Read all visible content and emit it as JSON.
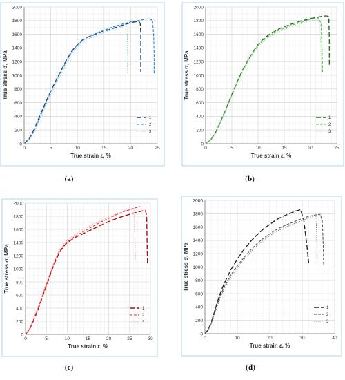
{
  "chart_data": [
    {
      "type": "line",
      "panel_label": "a",
      "xlabel": "True strain ε, %",
      "ylabel": "True stress σ, MPa",
      "xlim": [
        0,
        25
      ],
      "ylim": [
        0,
        2000
      ],
      "xticks": [
        0,
        5,
        10,
        15,
        20,
        25
      ],
      "yticks": [
        0,
        200,
        400,
        600,
        800,
        1000,
        1200,
        1400,
        1600,
        1800,
        2000
      ],
      "grid": true,
      "legend_position": "bottom-right",
      "series": [
        {
          "name": "1",
          "color": "#1f3f7a",
          "dash": "long",
          "x": [
            0,
            1,
            2,
            3,
            4,
            5,
            6,
            7,
            8,
            9,
            10,
            11,
            12,
            14,
            16,
            18,
            20,
            21.5,
            21.8,
            21.9,
            21.9,
            21.9
          ],
          "y": [
            0,
            80,
            230,
            420,
            600,
            770,
            930,
            1080,
            1230,
            1360,
            1450,
            1520,
            1560,
            1620,
            1670,
            1720,
            1770,
            1790,
            1760,
            1600,
            1300,
            1050
          ]
        },
        {
          "name": "2",
          "color": "#2e86c1",
          "dash": "short",
          "x": [
            0,
            1,
            2,
            3,
            4,
            5,
            6,
            7,
            8,
            9,
            10,
            11,
            12,
            14,
            16,
            18,
            20,
            22,
            23.5,
            24.1,
            24.3,
            24.4,
            24.4
          ],
          "y": [
            0,
            70,
            210,
            400,
            580,
            760,
            920,
            1070,
            1220,
            1350,
            1440,
            1510,
            1560,
            1630,
            1690,
            1740,
            1780,
            1810,
            1830,
            1800,
            1600,
            1300,
            1030
          ]
        },
        {
          "name": "3",
          "color": "#8cc4d6",
          "dash": "dot",
          "x": [
            0,
            1,
            2,
            3,
            4,
            5,
            6,
            7,
            8,
            9,
            10,
            11,
            12,
            14,
            16,
            18,
            19.3,
            19.4,
            19.4
          ],
          "y": [
            0,
            60,
            190,
            370,
            550,
            720,
            880,
            1030,
            1180,
            1320,
            1410,
            1480,
            1530,
            1600,
            1650,
            1700,
            1730,
            1400,
            1030
          ]
        }
      ]
    },
    {
      "type": "line",
      "panel_label": "b",
      "xlabel": "True strain ε, %",
      "ylabel": "True stress σ, MPa",
      "xlim": [
        0,
        25
      ],
      "ylim": [
        0,
        2000
      ],
      "xticks": [
        0,
        5,
        10,
        15,
        20,
        25
      ],
      "yticks": [
        0,
        200,
        400,
        600,
        800,
        1000,
        1200,
        1400,
        1600,
        1800,
        2000
      ],
      "grid": true,
      "legend_position": "bottom-right",
      "series": [
        {
          "name": "1",
          "color": "#2e6b1f",
          "dash": "long",
          "x": [
            0,
            1,
            2,
            3,
            4,
            5,
            6,
            7,
            8,
            9,
            10,
            11,
            12,
            14,
            16,
            18,
            20,
            22,
            23,
            23.5,
            23.6,
            23.6
          ],
          "y": [
            0,
            60,
            180,
            350,
            530,
            720,
            900,
            1070,
            1210,
            1340,
            1450,
            1530,
            1590,
            1680,
            1740,
            1790,
            1830,
            1860,
            1870,
            1860,
            1500,
            1130
          ]
        },
        {
          "name": "2",
          "color": "#5cb85c",
          "dash": "short",
          "x": [
            0,
            1,
            2,
            3,
            4,
            5,
            6,
            7,
            8,
            9,
            10,
            11,
            12,
            14,
            16,
            18,
            20,
            21.5,
            22,
            22.2,
            22.3
          ],
          "y": [
            0,
            55,
            170,
            340,
            520,
            710,
            890,
            1060,
            1200,
            1330,
            1440,
            1510,
            1570,
            1660,
            1720,
            1770,
            1820,
            1840,
            1760,
            1400,
            1050
          ]
        },
        {
          "name": "3",
          "color": "#b7dfb0",
          "dash": "dot",
          "x": [
            0,
            1,
            2,
            3,
            4,
            5,
            6,
            7,
            8,
            9,
            10,
            11,
            12,
            14,
            16,
            18,
            20,
            21.5,
            21.8,
            22.0,
            22.1
          ],
          "y": [
            0,
            50,
            160,
            320,
            500,
            690,
            870,
            1040,
            1180,
            1310,
            1420,
            1490,
            1550,
            1640,
            1700,
            1750,
            1800,
            1820,
            1700,
            1300,
            1020
          ]
        }
      ]
    },
    {
      "type": "line",
      "panel_label": "c",
      "xlabel": "True strain ε, %",
      "ylabel": "True stress σ, MPa",
      "xlim": [
        0,
        30
      ],
      "ylim": [
        0,
        2000
      ],
      "xticks": [
        0,
        5,
        10,
        15,
        20,
        25,
        30
      ],
      "yticks": [
        0,
        200,
        400,
        600,
        800,
        1000,
        1200,
        1400,
        1600,
        1800,
        2000
      ],
      "grid": true,
      "legend_position": "bottom-right",
      "series": [
        {
          "name": "1",
          "color": "#a31515",
          "dash": "long",
          "x": [
            0,
            1,
            2,
            3,
            4,
            5,
            6,
            7,
            8,
            9,
            10,
            12,
            14,
            16,
            18,
            20,
            22,
            24,
            26,
            28,
            28.8,
            29.1,
            29.2,
            29.3
          ],
          "y": [
            0,
            80,
            220,
            380,
            560,
            740,
            920,
            1090,
            1230,
            1330,
            1400,
            1480,
            1540,
            1600,
            1660,
            1720,
            1770,
            1810,
            1850,
            1880,
            1890,
            1800,
            1400,
            1080
          ]
        },
        {
          "name": "2",
          "color": "#e03030",
          "dash": "short",
          "x": [
            0,
            1,
            2,
            3,
            4,
            5,
            6,
            7,
            8,
            9,
            10,
            12,
            14,
            16,
            18,
            20,
            22,
            24,
            26,
            27.5
          ],
          "y": [
            0,
            90,
            240,
            400,
            580,
            760,
            940,
            1110,
            1250,
            1340,
            1410,
            1500,
            1570,
            1640,
            1710,
            1770,
            1830,
            1880,
            1920,
            1950
          ]
        },
        {
          "name": "3",
          "color": "#f2a0a0",
          "dash": "dot",
          "x": [
            0,
            1,
            2,
            3,
            4,
            5,
            6,
            7,
            8,
            9,
            10,
            12,
            14,
            16,
            18,
            20,
            22,
            24,
            26,
            26.3,
            26.4
          ],
          "y": [
            0,
            100,
            260,
            420,
            600,
            780,
            960,
            1130,
            1270,
            1360,
            1440,
            1530,
            1600,
            1670,
            1730,
            1790,
            1840,
            1890,
            1920,
            1500,
            1120
          ]
        }
      ]
    },
    {
      "type": "line",
      "panel_label": "d",
      "xlabel": "True strain ε, %",
      "ylabel": "True stress σ, MPa",
      "xlim": [
        0,
        40
      ],
      "ylim": [
        0,
        2000
      ],
      "xticks": [
        0,
        10,
        20,
        30,
        40
      ],
      "yticks": [
        0,
        200,
        400,
        600,
        800,
        1000,
        1200,
        1400,
        1600,
        1800,
        2000
      ],
      "grid": true,
      "legend_position": "bottom-right",
      "series": [
        {
          "name": "1",
          "color": "#222222",
          "dash": "long",
          "x": [
            0,
            1,
            2,
            3,
            4,
            5,
            6,
            8,
            10,
            12,
            14,
            16,
            18,
            20,
            22,
            24,
            26,
            28,
            29.5,
            30.5,
            31.5,
            32
          ],
          "y": [
            0,
            60,
            180,
            340,
            500,
            640,
            760,
            960,
            1120,
            1260,
            1380,
            1480,
            1570,
            1640,
            1710,
            1760,
            1800,
            1840,
            1860,
            1700,
            1300,
            1060
          ]
        },
        {
          "name": "2",
          "color": "#555555",
          "dash": "short",
          "x": [
            0,
            1,
            2,
            3,
            4,
            5,
            6,
            8,
            10,
            12,
            14,
            16,
            18,
            20,
            22,
            24,
            26,
            28,
            30,
            32,
            34,
            35.5,
            36.2,
            36.5,
            36.6
          ],
          "y": [
            0,
            55,
            165,
            320,
            470,
            600,
            710,
            880,
            1020,
            1140,
            1250,
            1350,
            1430,
            1500,
            1560,
            1610,
            1650,
            1690,
            1730,
            1760,
            1780,
            1790,
            1700,
            1300,
            1040
          ]
        },
        {
          "name": "3",
          "color": "#777777",
          "dash": "dot",
          "x": [
            0,
            1,
            2,
            3,
            4,
            5,
            6,
            8,
            10,
            12,
            14,
            16,
            18,
            20,
            22,
            24,
            26,
            28,
            30,
            32,
            33.5,
            34.3,
            34.5,
            34.6
          ],
          "y": [
            0,
            50,
            150,
            300,
            440,
            570,
            680,
            850,
            990,
            1110,
            1220,
            1320,
            1400,
            1470,
            1530,
            1580,
            1620,
            1660,
            1700,
            1740,
            1770,
            1760,
            1400,
            1020
          ]
        }
      ]
    }
  ]
}
